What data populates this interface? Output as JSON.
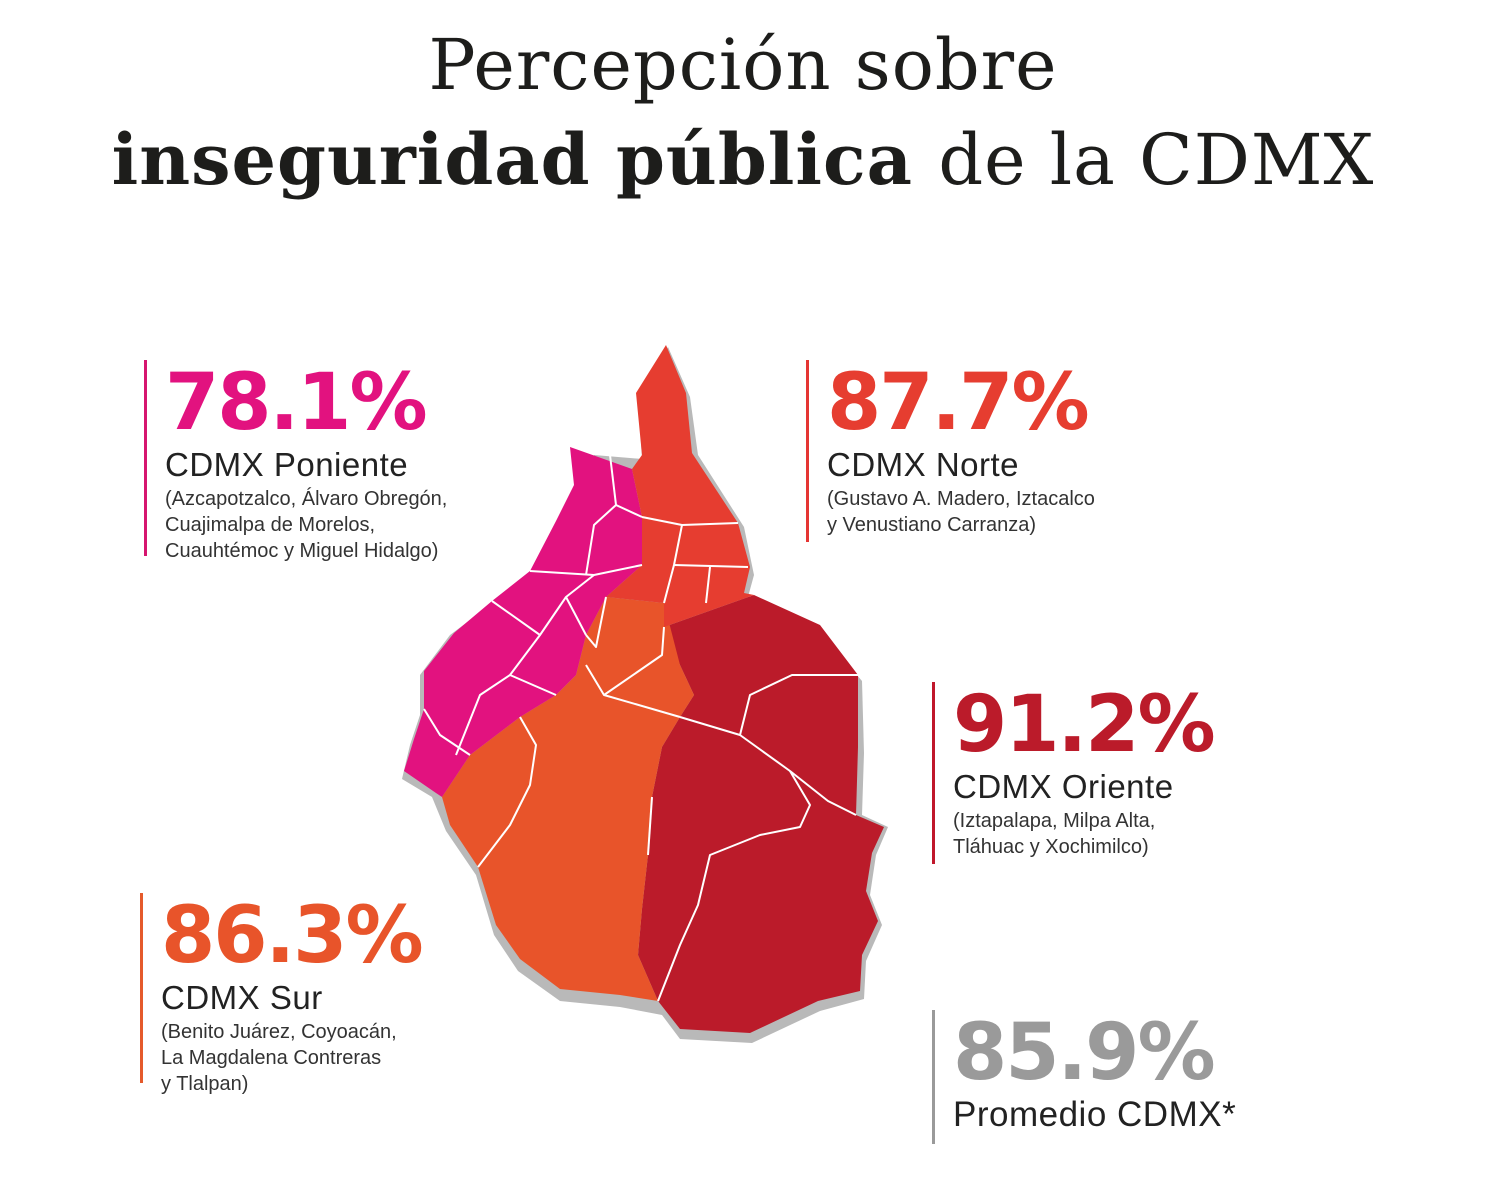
{
  "title": {
    "line1": "Percepción sobre",
    "line2_bold": "inseguridad pública",
    "line2_light": "de la CDMX"
  },
  "colors": {
    "poniente": "#e2127f",
    "norte": "#e63d30",
    "oriente": "#bb1b2a",
    "sur": "#e8542a",
    "promedio": "#9a9a9a"
  },
  "regions": {
    "poniente": {
      "pct": "78.1%",
      "value": 78.1,
      "name": "CDMX Poniente",
      "detail": [
        "(Azcapotzalco, Álvaro Obregón,",
        "Cuajimalpa de Morelos,",
        "Cuauhtémoc y Miguel Hidalgo)"
      ]
    },
    "norte": {
      "pct": "87.7%",
      "value": 87.7,
      "name": "CDMX Norte",
      "detail": [
        "(Gustavo A. Madero, Iztacalco",
        "y Venustiano Carranza)"
      ]
    },
    "oriente": {
      "pct": "91.2%",
      "value": 91.2,
      "name": "CDMX Oriente",
      "detail": [
        "(Iztapalapa, Milpa Alta,",
        "Tláhuac y Xochimilco)"
      ]
    },
    "sur": {
      "pct": "86.3%",
      "value": 86.3,
      "name": "CDMX Sur",
      "detail": [
        "(Benito Juárez, Coyoacán,",
        "La Magdalena Contreras",
        "y Tlalpan)"
      ]
    },
    "promedio": {
      "pct": "85.9%",
      "value": 85.9,
      "name": "Promedio CDMX*"
    }
  }
}
